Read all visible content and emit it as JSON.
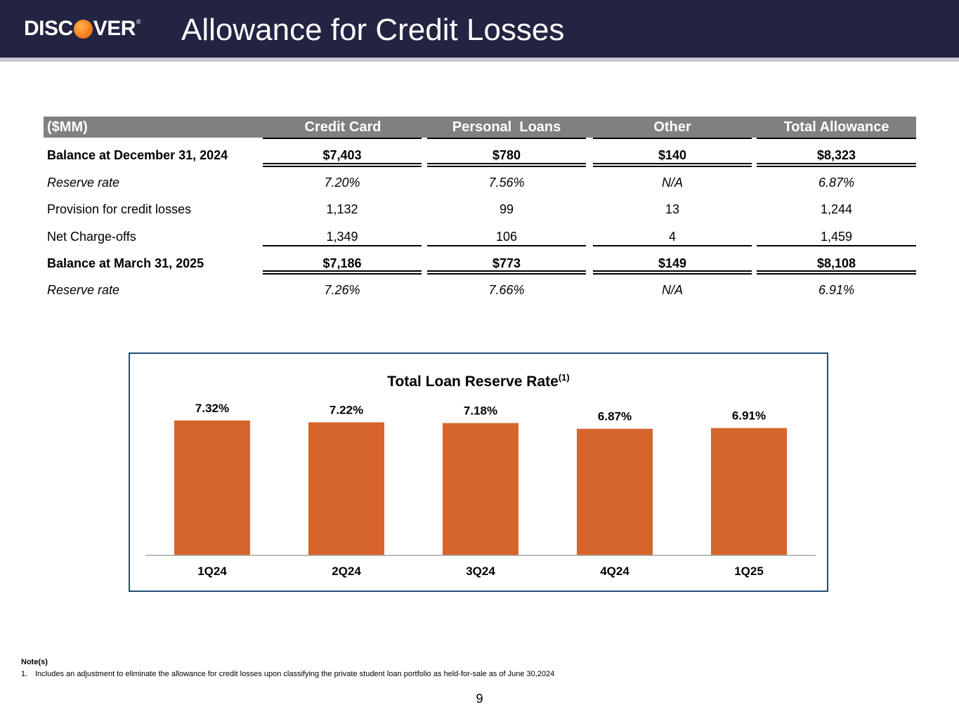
{
  "header": {
    "logo_text_left": "DISC",
    "logo_text_right": "VER",
    "logo_reg": "®",
    "title": "Allowance for Credit Losses",
    "colors": {
      "banner": "#232342",
      "rule": "#c9cace",
      "accent": "#f58220"
    }
  },
  "table": {
    "columns": [
      "($MM)",
      "Credit Card",
      "Personal  Loans",
      "Other",
      "Total Allowance"
    ],
    "rows": [
      {
        "label": "Balance at December 31, 2024",
        "style": "bold",
        "values": [
          "$7,403",
          "$780",
          "$140",
          "$8,323"
        ]
      },
      {
        "label": "Reserve rate",
        "style": "italic",
        "values": [
          "7.20%",
          "7.56%",
          "N/A",
          "6.87%"
        ]
      },
      {
        "label": "Provision for credit losses",
        "style": "normal",
        "values": [
          "1,132",
          "99",
          "13",
          "1,244"
        ]
      },
      {
        "label": "Net Charge-offs",
        "style": "normal",
        "values": [
          "1,349",
          "106",
          "4",
          "1,459"
        ]
      },
      {
        "label": "Balance at March 31, 2025",
        "style": "bold",
        "values": [
          "$7,186",
          "$773",
          "$149",
          "$8,108"
        ]
      },
      {
        "label": "Reserve rate",
        "style": "italic",
        "values": [
          "7.26%",
          "7.66%",
          "N/A",
          "6.91%"
        ]
      }
    ]
  },
  "chart_data": {
    "type": "bar",
    "title": "Total Loan Reserve Rate",
    "title_superscript": "(1)",
    "categories": [
      "1Q24",
      "2Q24",
      "3Q24",
      "4Q24",
      "1Q25"
    ],
    "values": [
      7.32,
      7.22,
      7.18,
      6.87,
      6.91
    ],
    "value_labels": [
      "7.32%",
      "7.22%",
      "7.18%",
      "6.87%",
      "6.91%"
    ],
    "xlabel": "",
    "ylabel": "",
    "ylim": [
      0,
      8
    ],
    "grid": false,
    "bar_color": "#d6652b",
    "frame_color": "#1f4e79"
  },
  "notes": {
    "heading": "Note(s)",
    "items": [
      {
        "num": "1.",
        "text": "Includes an adjustment to eliminate the allowance for credit losses upon classifying the private student loan portfolio as held-for-sale as of June 30,2024"
      }
    ]
  },
  "page_number": "9"
}
